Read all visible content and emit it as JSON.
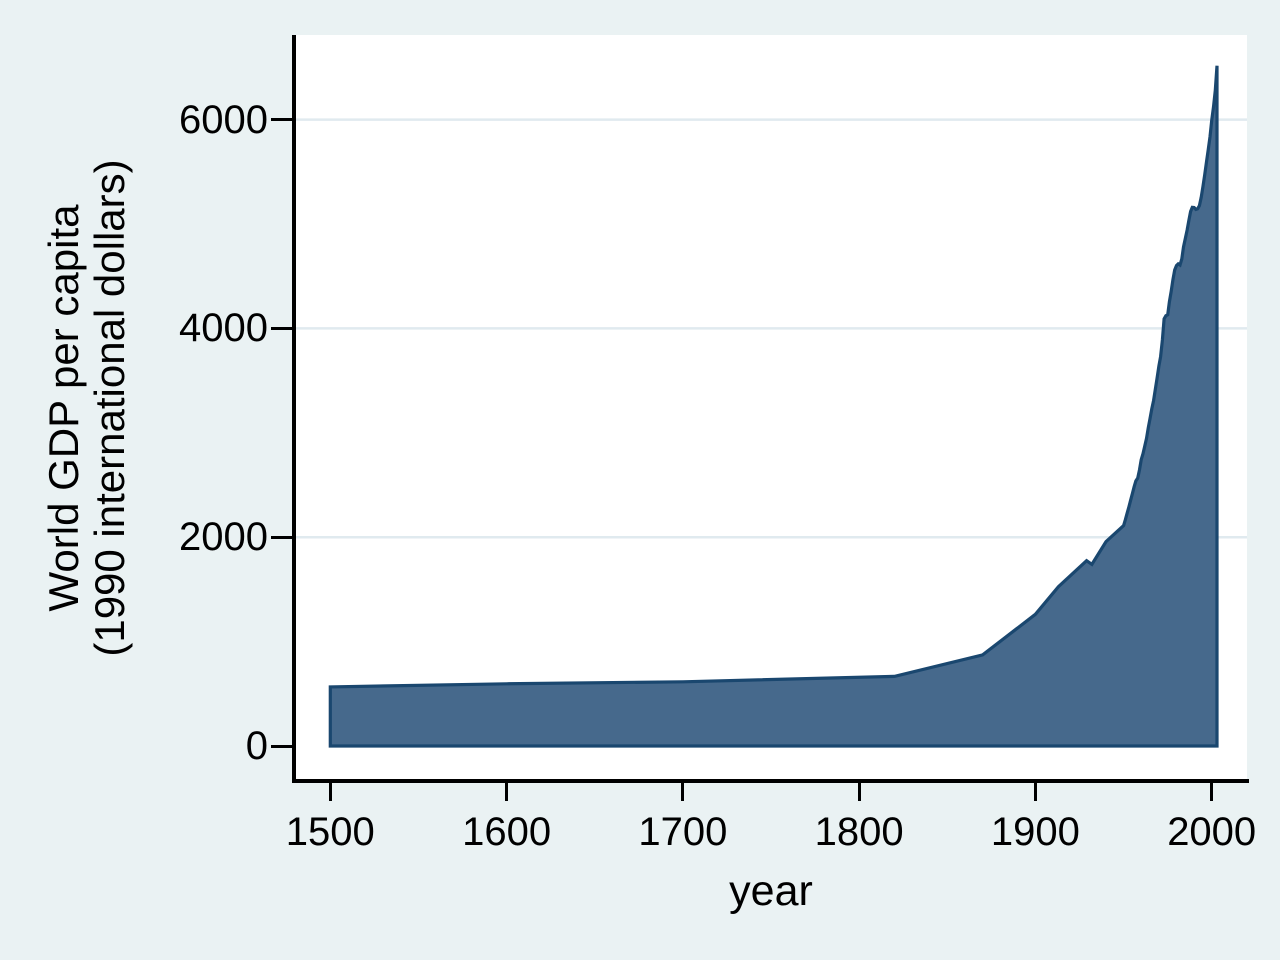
{
  "figure": {
    "x_axis_title": "year",
    "y_axis_title_line1": "World GDP per capita",
    "y_axis_title_line2": "(1990 international dollars)"
  },
  "colors": {
    "background": "#eaf2f3",
    "plot_background": "#ffffff",
    "gridline": "#e0eaef",
    "area_fill": "#46698c",
    "area_outline": "#1a476f",
    "axis": "#000000",
    "text": "#000000"
  },
  "chart_data": {
    "type": "area",
    "title": "",
    "xlabel": "year",
    "ylabel": "World GDP per capita (1990 international dollars)",
    "legend": "none",
    "grid": "horizontal",
    "x_ticks": [
      1500,
      1600,
      1700,
      1800,
      1900,
      2000
    ],
    "y_ticks": [
      0,
      2000,
      4000,
      6000
    ],
    "grid_values": [
      2000,
      4000,
      6000
    ],
    "xlim": [
      1480,
      2020
    ],
    "ylim": [
      -335,
      6810
    ],
    "baseline": 0,
    "series": [
      {
        "name": "World GDP per capita (1990 international dollars)",
        "points": [
          [
            1500,
            566
          ],
          [
            1600,
            596
          ],
          [
            1700,
            615
          ],
          [
            1820,
            667
          ],
          [
            1870,
            873
          ],
          [
            1900,
            1262
          ],
          [
            1913,
            1526
          ],
          [
            1929,
            1775
          ],
          [
            1932,
            1740
          ],
          [
            1940,
            1958
          ],
          [
            1950,
            2111
          ],
          [
            1951,
            2169
          ],
          [
            1952,
            2229
          ],
          [
            1953,
            2290
          ],
          [
            1954,
            2353
          ],
          [
            1955,
            2418
          ],
          [
            1956,
            2485
          ],
          [
            1957,
            2540
          ],
          [
            1958,
            2565
          ],
          [
            1959,
            2646
          ],
          [
            1960,
            2742
          ],
          [
            1961,
            2800
          ],
          [
            1962,
            2870
          ],
          [
            1963,
            2945
          ],
          [
            1964,
            3050
          ],
          [
            1965,
            3135
          ],
          [
            1966,
            3230
          ],
          [
            1967,
            3310
          ],
          [
            1968,
            3415
          ],
          [
            1969,
            3525
          ],
          [
            1970,
            3640
          ],
          [
            1971,
            3730
          ],
          [
            1972,
            3890
          ],
          [
            1973,
            4091
          ],
          [
            1974,
            4122
          ],
          [
            1975,
            4130
          ],
          [
            1976,
            4255
          ],
          [
            1977,
            4355
          ],
          [
            1978,
            4470
          ],
          [
            1979,
            4560
          ],
          [
            1980,
            4602
          ],
          [
            1981,
            4618
          ],
          [
            1982,
            4607
          ],
          [
            1983,
            4665
          ],
          [
            1984,
            4780
          ],
          [
            1985,
            4860
          ],
          [
            1986,
            4940
          ],
          [
            1987,
            5030
          ],
          [
            1988,
            5120
          ],
          [
            1989,
            5160
          ],
          [
            1990,
            5158
          ],
          [
            1991,
            5140
          ],
          [
            1992,
            5145
          ],
          [
            1993,
            5175
          ],
          [
            1994,
            5255
          ],
          [
            1995,
            5355
          ],
          [
            1996,
            5470
          ],
          [
            1997,
            5595
          ],
          [
            1998,
            5709
          ],
          [
            1999,
            5835
          ],
          [
            2000,
            5990
          ],
          [
            2001,
            6120
          ],
          [
            2002,
            6280
          ],
          [
            2003,
            6516
          ]
        ]
      }
    ]
  }
}
